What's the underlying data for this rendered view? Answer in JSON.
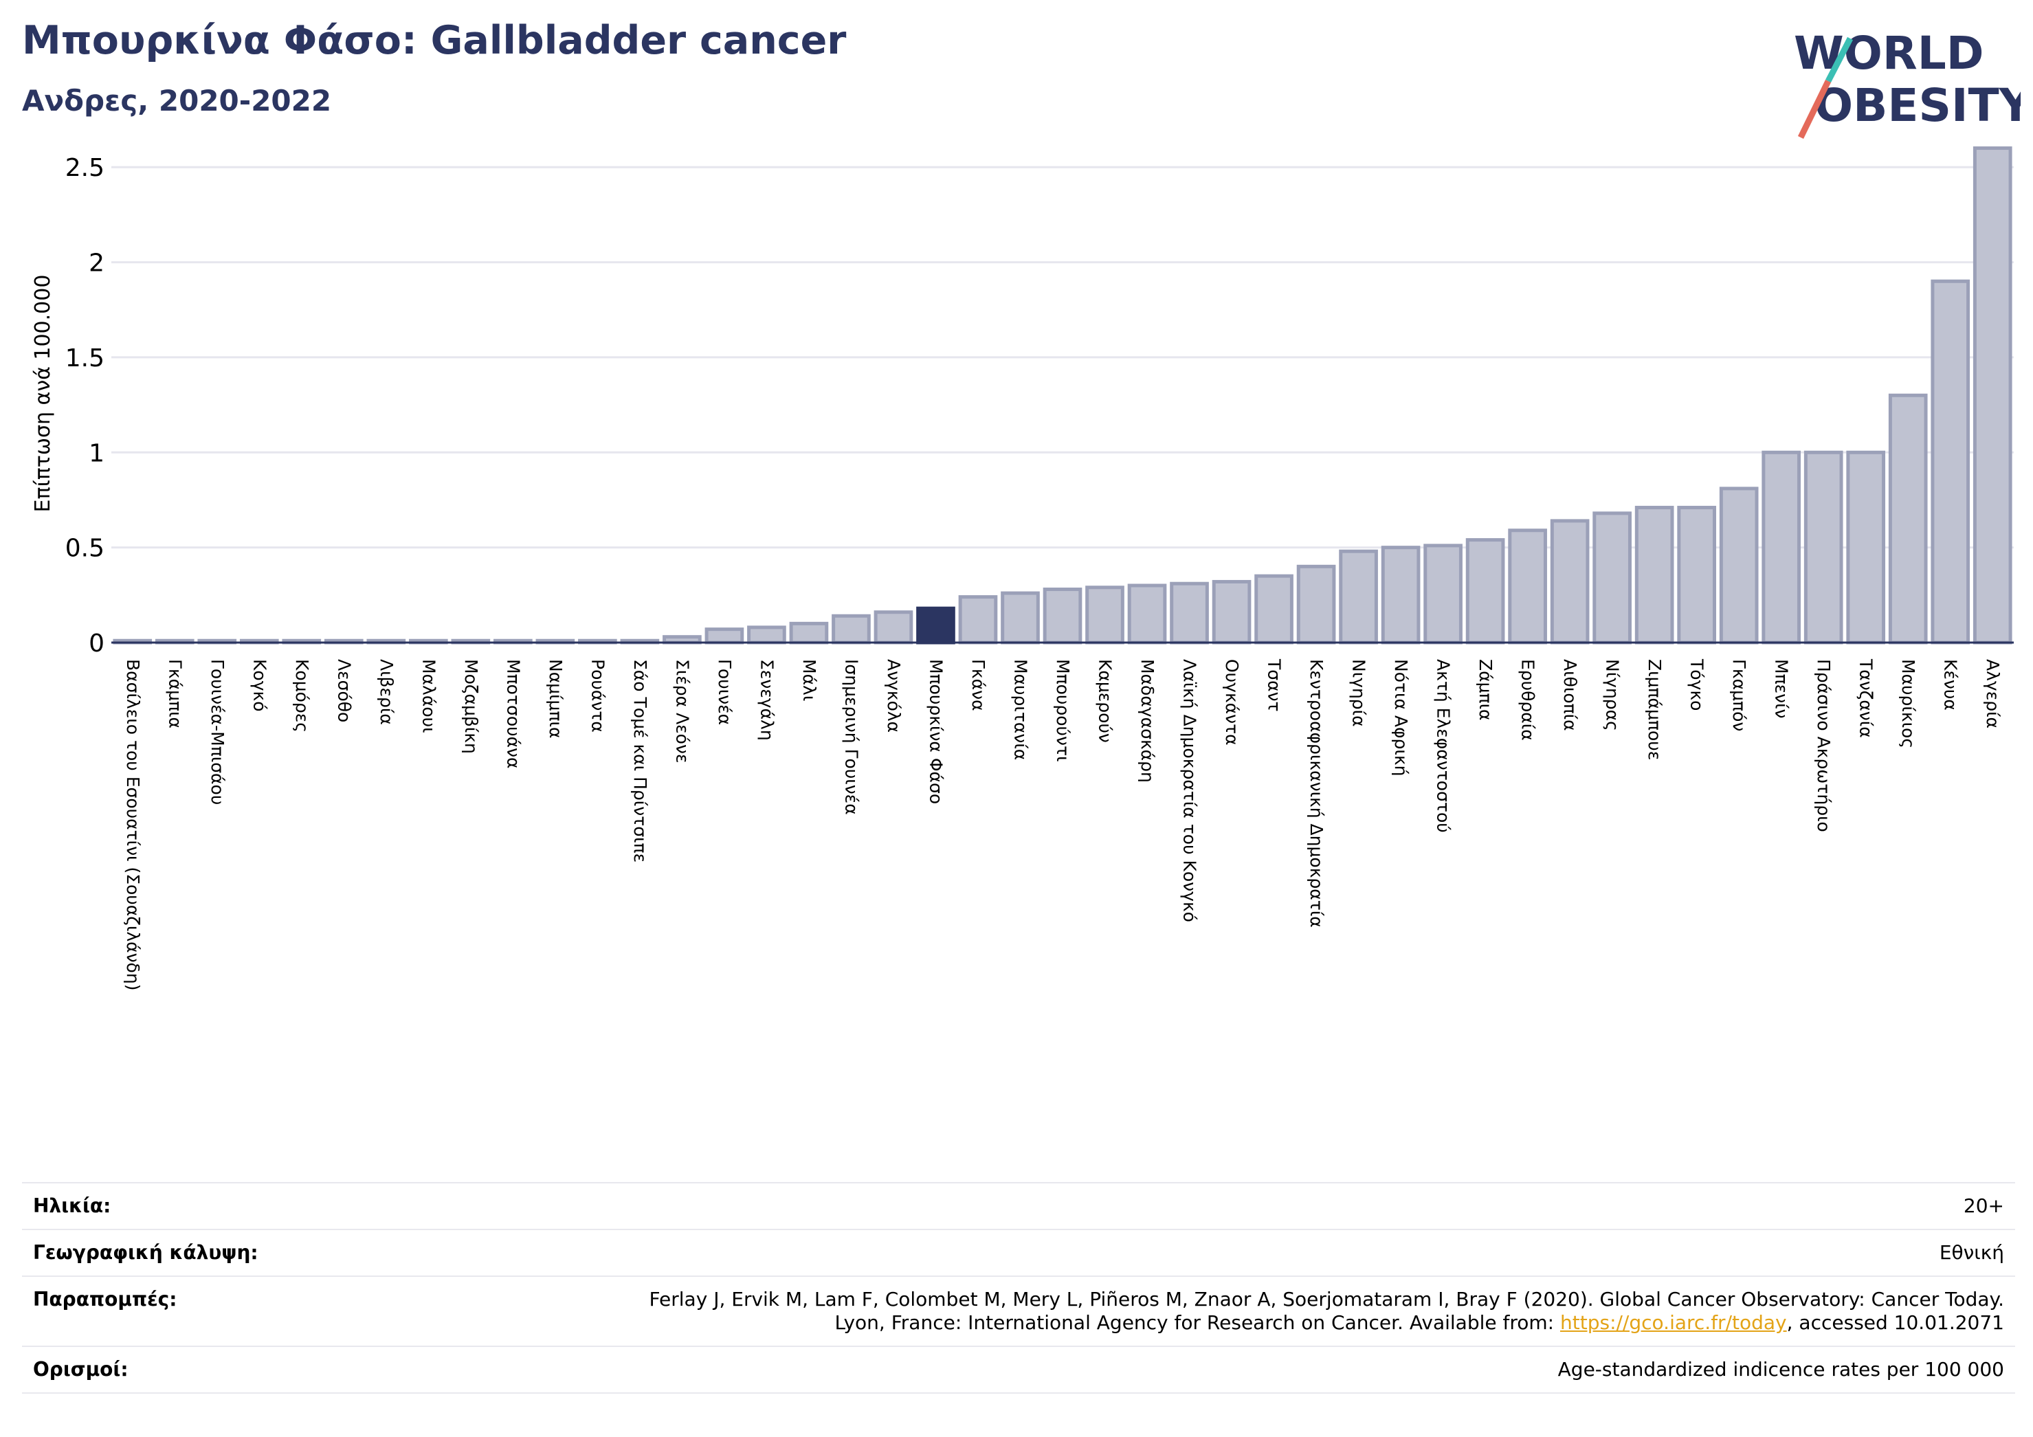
{
  "header": {
    "title": "Μπουρκίνα Φάσο: Gallbladder cancer",
    "subtitle": "Ανδρες, 2020-2022"
  },
  "logo": {
    "line1": "WORLD",
    "line2": "OBESITY"
  },
  "colors": {
    "title": "#2b3561",
    "highlight": "#2b3561",
    "bar": "#bfc2d1",
    "bar_edge": "#9ba0b8",
    "link": "#e3a317"
  },
  "chart_data": {
    "type": "bar",
    "ylabel": "Επίπτωση ανά 100.000",
    "xlabel": "",
    "ylim": [
      0,
      2.62
    ],
    "yticks": [
      0,
      0.5,
      1,
      1.5,
      2,
      2.5
    ],
    "ytick_labels": [
      "0",
      "0.5",
      "1",
      "1.5",
      "2",
      "2.5"
    ],
    "grid": true,
    "highlight": "Μπουρκίνα Φάσο",
    "categories": [
      "Βασίλειο του Εσουατίνι (Σουαζιλάνδη)",
      "Γκάμπια",
      "Γουινέα-Μπισάου",
      "Κογκό",
      "Κομόρες",
      "Λεσόθο",
      "Λιβερία",
      "Μαλάουι",
      "Μοζαμβίκη",
      "Μποτσουάνα",
      "Ναμίμπια",
      "Ρουάντα",
      "Σάο Τομέ και Πρίντσιπε",
      "Σιέρα Λεόνε",
      "Γουινέα",
      "Σενεγάλη",
      "Μάλι",
      "Ισημερινή Γουινέα",
      "Ανγκόλα",
      "Μπουρκίνα Φάσο",
      "Γκάνα",
      "Μαυριτανία",
      "Μπουρούντι",
      "Καμερούν",
      "Μαδαγασκάρη",
      "Λαϊκή Δημοκρατία του Κονγκό",
      "Ουγκάντα",
      "Τσαντ",
      "Κεντροαφρικανική Δημοκρατία",
      "Νιγηρία",
      "Νότια Αφρική",
      "Ακτή Ελεφαντοστού",
      "Ζάμπια",
      "Ερυθραία",
      "Αιθιοπία",
      "Νίγηρας",
      "Ζιμπάμπουε",
      "Τόγκο",
      "Γκαμπόν",
      "Μπενίν",
      "Πράσινο Ακρωτήριο",
      "Τανζανία",
      "Μαυρίκιος",
      "Κένυα",
      "Αλγερία"
    ],
    "values": [
      0.01,
      0.01,
      0.01,
      0.01,
      0.01,
      0.01,
      0.01,
      0.01,
      0.01,
      0.01,
      0.01,
      0.01,
      0.01,
      0.03,
      0.07,
      0.08,
      0.1,
      0.14,
      0.16,
      0.18,
      0.24,
      0.26,
      0.28,
      0.29,
      0.3,
      0.31,
      0.32,
      0.35,
      0.4,
      0.48,
      0.5,
      0.51,
      0.54,
      0.59,
      0.64,
      0.68,
      0.71,
      0.71,
      0.81,
      1.0,
      1.0,
      1.0,
      1.3,
      1.9,
      2.6
    ]
  },
  "footer": {
    "age_label": "Ηλικία:",
    "age_value": "20+",
    "coverage_label": "Γεωγραφική κάλυψη:",
    "coverage_value": "Εθνική",
    "refs_label": "Παραπομπές:",
    "refs_line1": "Ferlay J, Ervik M, Lam F, Colombet M, Mery L, Piñeros M, Znaor A, Soerjomataram I, Bray F (2020). Global Cancer Observatory: Cancer Today.",
    "refs_line2_pre": "Lyon, France: International Agency for Research on Cancer. Available from: ",
    "refs_link": "https://gco.iarc.fr/today",
    "refs_line2_post": ", accessed 10.01.2071",
    "defs_label": "Ορισμοί:",
    "defs_value": "Age-standardized indicence rates per 100 000"
  }
}
